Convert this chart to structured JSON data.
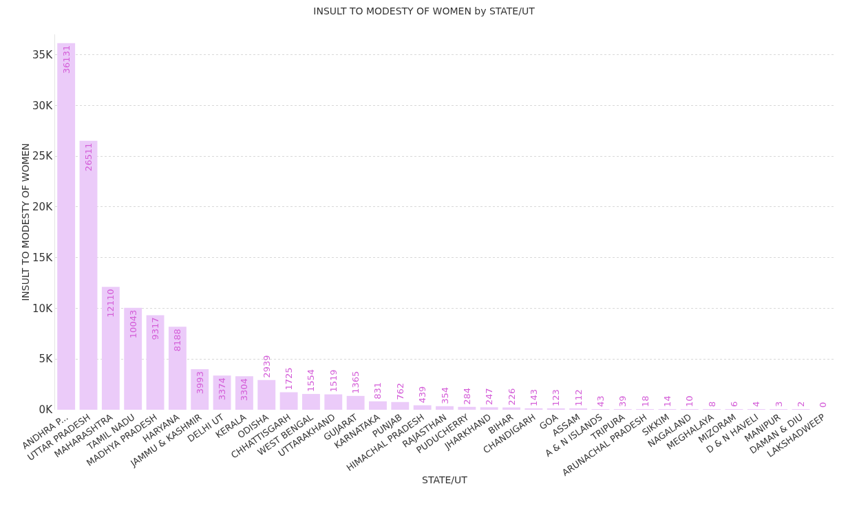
{
  "chart_data": {
    "type": "bar",
    "title": "INSULT TO MODESTY OF WOMEN by STATE/UT",
    "xlabel": "STATE/UT",
    "ylabel": "INSULT TO MODESTY OF WOMEN",
    "categories": [
      "ANDHRA P...",
      "UTTAR PRADESH",
      "MAHARASHTRA",
      "TAMIL NADU",
      "MADHYA PRADESH",
      "HARYANA",
      "JAMMU & KASHMIR",
      "DELHI UT",
      "KERALA",
      "ODISHA",
      "CHHATTISGARH",
      "WEST BENGAL",
      "UTTARAKHAND",
      "GUJARAT",
      "KARNATAKA",
      "PUNJAB",
      "HIMACHAL PRADESH",
      "RAJASTHAN",
      "PUDUCHERRY",
      "JHARKHAND",
      "BIHAR",
      "CHANDIGARH",
      "GOA",
      "ASSAM",
      "A & N ISLANDS",
      "TRIPURA",
      "ARUNACHAL PRADESH",
      "SIKKIM",
      "NAGALAND",
      "MEGHALAYA",
      "MIZORAM",
      "D & N HAVELI",
      "MANIPUR",
      "DAMAN & DIU",
      "LAKSHADWEEP"
    ],
    "values": [
      36131,
      26511,
      12110,
      10043,
      9317,
      8188,
      3993,
      3374,
      3304,
      2939,
      1725,
      1554,
      1519,
      1365,
      831,
      762,
      439,
      354,
      284,
      247,
      226,
      143,
      123,
      112,
      43,
      39,
      18,
      14,
      10,
      8,
      6,
      4,
      3,
      2,
      0
    ],
    "color": "#ebcbf9",
    "ylim": [
      0,
      37000
    ],
    "yticks": [
      {
        "value": 0,
        "label": "0K"
      },
      {
        "value": 5000,
        "label": "5K"
      },
      {
        "value": 10000,
        "label": "10K"
      },
      {
        "value": 15000,
        "label": "15K"
      },
      {
        "value": 20000,
        "label": "20K"
      },
      {
        "value": 25000,
        "label": "25K"
      },
      {
        "value": 30000,
        "label": "30K"
      },
      {
        "value": 35000,
        "label": "35K"
      }
    ],
    "grid": "y",
    "data_labels": true
  }
}
